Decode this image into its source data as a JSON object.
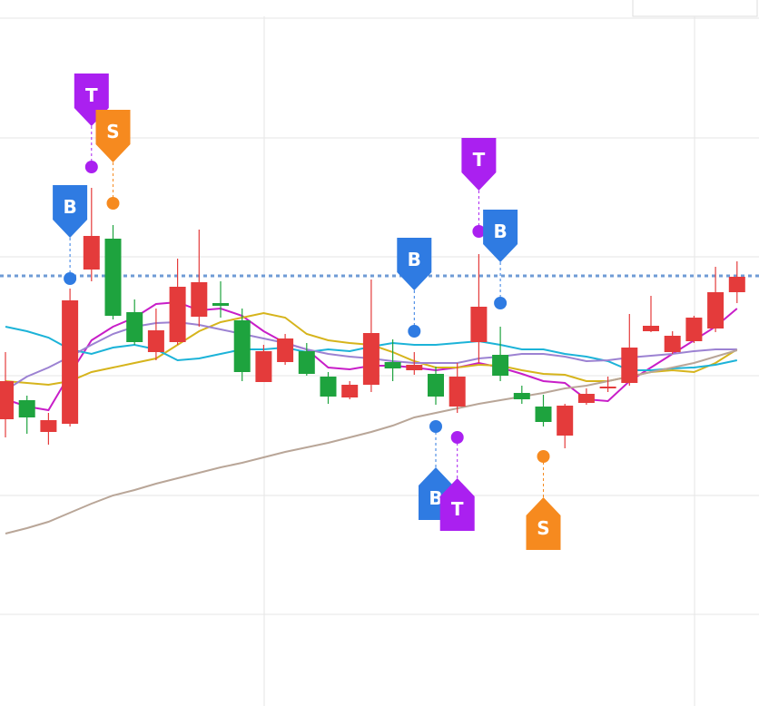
{
  "chart_data": {
    "type": "candlestick",
    "ylim": [
      0,
      77.8
    ],
    "yticks": [
      10.1,
      23.2,
      36.4,
      49.5,
      62.6,
      75.8
    ],
    "grid": true,
    "up_color": "#e43b3b",
    "down_color": "#1ea33e",
    "categories": [
      null,
      null,
      null,
      null,
      null,
      null,
      null,
      null,
      null,
      null,
      null,
      null,
      null,
      null,
      null,
      null,
      null,
      null,
      null,
      null,
      null,
      null,
      null,
      null,
      null,
      null,
      null,
      null,
      null,
      null,
      null,
      null,
      null,
      null,
      null
    ],
    "open": [
      31.6,
      33.7,
      30.2,
      31.1,
      48.1,
      51.5,
      43.4,
      39.0,
      40.1,
      42.9,
      44.4,
      42.5,
      35.7,
      37.9,
      39.1,
      36.3,
      34.0,
      35.4,
      37.9,
      37.0,
      36.6,
      33.0,
      40.1,
      38.7,
      34.5,
      33.0,
      29.8,
      33.4,
      35.0,
      35.6,
      41.3,
      39.0,
      40.2,
      41.6,
      45.6
    ],
    "high": [
      39.0,
      34.2,
      32.3,
      46.0,
      57.1,
      53.0,
      44.8,
      43.8,
      49.3,
      52.5,
      46.8,
      43.8,
      39.8,
      41.0,
      40.0,
      36.8,
      35.8,
      47.0,
      40.4,
      39.0,
      37.4,
      37.8,
      49.8,
      41.8,
      35.3,
      34.3,
      33.3,
      35.0,
      36.3,
      43.2,
      45.2,
      41.3,
      43.0,
      48.4,
      49.0
    ],
    "low": [
      29.6,
      30.0,
      28.8,
      30.8,
      46.8,
      42.6,
      39.8,
      38.1,
      39.8,
      41.8,
      42.8,
      35.8,
      35.7,
      37.6,
      36.4,
      33.3,
      33.8,
      34.6,
      35.8,
      36.5,
      33.2,
      32.3,
      37.8,
      35.8,
      33.3,
      30.8,
      28.4,
      33.2,
      34.6,
      35.3,
      41.2,
      38.8,
      40.0,
      41.2,
      44.4
    ],
    "close": [
      35.8,
      31.8,
      31.5,
      44.7,
      51.8,
      43.0,
      40.1,
      41.4,
      46.2,
      46.7,
      44.1,
      36.8,
      39.1,
      40.5,
      36.6,
      34.1,
      35.4,
      41.1,
      37.2,
      37.6,
      34.1,
      36.3,
      44.0,
      36.4,
      33.8,
      31.3,
      33.1,
      34.4,
      35.2,
      39.5,
      41.9,
      40.8,
      42.8,
      45.6,
      47.3
    ],
    "series": [
      {
        "color": "#c81ec8",
        "values": [
          33.8,
          33.0,
          32.6,
          36.6,
          40.3,
          41.8,
          42.8,
          44.3,
          44.5,
          43.6,
          43.8,
          43.0,
          41.3,
          40.0,
          39.3,
          37.3,
          37.1,
          37.5,
          37.5,
          37.3,
          37.0,
          37.3,
          37.8,
          37.3,
          36.6,
          35.8,
          35.6,
          33.8,
          33.6,
          35.8,
          37.3,
          38.8,
          40.3,
          41.8,
          43.8
        ]
      },
      {
        "color": "#d6b41c",
        "values": [
          35.8,
          35.6,
          35.4,
          35.8,
          36.8,
          37.3,
          37.8,
          38.3,
          39.8,
          41.3,
          42.3,
          42.8,
          43.3,
          42.8,
          41.0,
          40.3,
          40.0,
          39.8,
          39.0,
          38.0,
          37.3,
          37.3,
          37.6,
          37.5,
          37.0,
          36.6,
          36.5,
          35.8,
          35.8,
          36.3,
          36.8,
          37.0,
          36.8,
          37.8,
          39.3
        ]
      },
      {
        "color": "#1cb3d8",
        "values": [
          41.8,
          41.3,
          40.6,
          39.3,
          38.8,
          39.5,
          39.8,
          39.3,
          38.1,
          38.3,
          38.8,
          39.3,
          39.3,
          39.5,
          39.0,
          39.3,
          39.1,
          39.6,
          40.0,
          39.8,
          39.8,
          40.0,
          40.2,
          39.8,
          39.3,
          39.3,
          38.8,
          38.5,
          38.0,
          37.0,
          37.0,
          37.2,
          37.3,
          37.6,
          38.1
        ]
      },
      {
        "color": "#9c82d2",
        "values": [
          34.8,
          36.3,
          37.3,
          38.5,
          39.8,
          41.0,
          41.8,
          42.2,
          42.3,
          42.0,
          41.5,
          41.0,
          40.5,
          40.0,
          39.3,
          38.8,
          38.5,
          38.3,
          38.0,
          37.8,
          37.8,
          37.8,
          38.3,
          38.5,
          38.8,
          38.8,
          38.5,
          38.0,
          38.1,
          38.4,
          38.6,
          38.8,
          39.1,
          39.3,
          39.3
        ]
      },
      {
        "color": "#b9a698",
        "values": [
          19.0,
          19.6,
          20.3,
          21.3,
          22.3,
          23.2,
          23.8,
          24.5,
          25.1,
          25.7,
          26.3,
          26.8,
          27.4,
          28.0,
          28.5,
          29.0,
          29.6,
          30.2,
          30.9,
          31.8,
          32.3,
          32.8,
          33.3,
          33.7,
          34.1,
          34.5,
          35.0,
          35.3,
          35.8,
          36.3,
          36.8,
          37.3,
          37.8,
          38.5,
          39.2
        ]
      }
    ],
    "price_line": {
      "value": 47.4,
      "color": "#6f9bd6"
    },
    "signals": [
      {
        "label": "T",
        "color": "#aa20f0",
        "index": 4,
        "position": "above",
        "value": 59.4
      },
      {
        "label": "S",
        "color": "#f68a1f",
        "index": 5,
        "position": "above",
        "value": 55.4
      },
      {
        "label": "B",
        "color": "#2f7be2",
        "index": 3,
        "position": "above",
        "value": 47.1
      },
      {
        "label": "B",
        "color": "#2f7be2",
        "index": 19,
        "position": "above",
        "value": 41.3
      },
      {
        "label": "T",
        "color": "#aa20f0",
        "index": 22,
        "position": "above",
        "value": 52.3
      },
      {
        "label": "B",
        "color": "#2f7be2",
        "index": 23,
        "position": "above",
        "value": 44.4
      },
      {
        "label": "B",
        "color": "#2f7be2",
        "index": 20,
        "position": "below",
        "value": 30.8
      },
      {
        "label": "T",
        "color": "#aa20f0",
        "index": 21,
        "position": "below",
        "value": 29.6
      },
      {
        "label": "S",
        "color": "#f68a1f",
        "index": 25,
        "position": "below",
        "value": 27.5
      }
    ]
  }
}
